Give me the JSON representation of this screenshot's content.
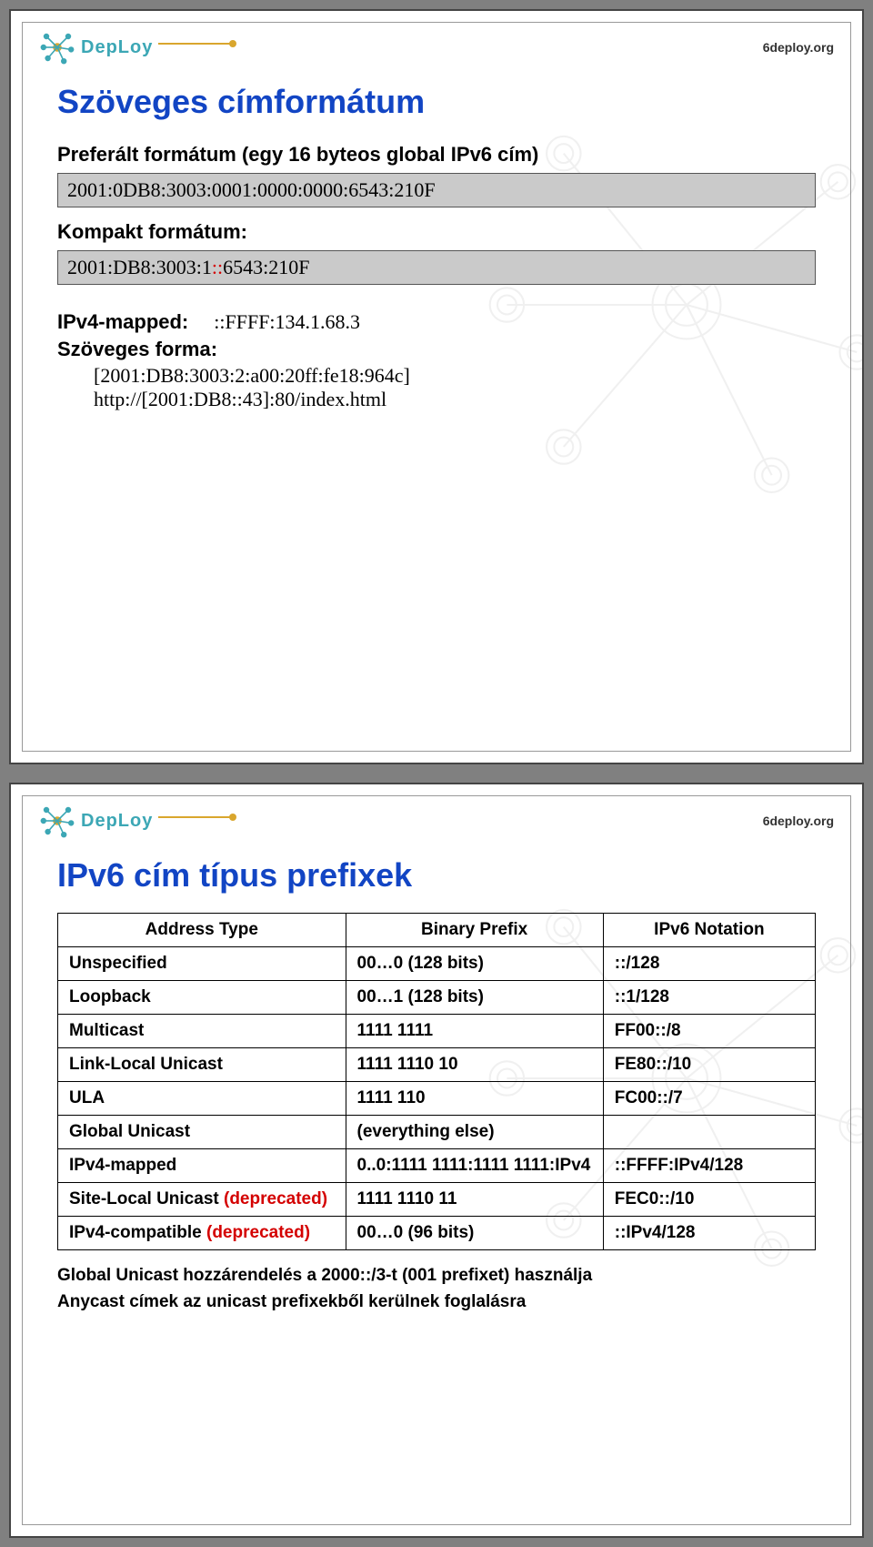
{
  "colors": {
    "title_blue": "#1245c4",
    "logo_cyan": "#3ca7b5",
    "logo_orange": "#d9a62d",
    "red": "#d40000",
    "addr_box_bg": "#cacaca",
    "watermark_gray": "#888888"
  },
  "brand": {
    "logo_text": "DepLoy",
    "right_text": "6deploy.org"
  },
  "slide1": {
    "title": "Szöveges címformátum",
    "pref_label": "Preferált formátum (egy 16 byteos global IPv6 cím)",
    "pref_addr": "2001:0DB8:3003:0001:0000:0000:6543:210F",
    "compact_label": "Kompakt formátum:",
    "compact_addr_pre": "2001:DB8:3003:1",
    "compact_addr_colons": "::",
    "compact_addr_post": "6543:210F",
    "ipv4_mapped_label": "IPv4-mapped:",
    "ipv4_mapped_value": "::FFFF:134.1.68.3",
    "text_form_label": "Szöveges forma:",
    "text_form_1": "[2001:DB8:3003:2:a00:20ff:fe18:964c]",
    "text_form_2": "http://[2001:DB8::43]:80/index.html"
  },
  "slide2": {
    "title": "IPv6 cím típus prefixek",
    "table": {
      "headers": [
        "Address Type",
        "Binary Prefix",
        "IPv6 Notation"
      ],
      "groups": [
        [
          {
            "type": "Unspecified",
            "prefix": "00…0 (128 bits)",
            "notation": "::/128"
          },
          {
            "type": "Loopback",
            "prefix": "00…1 (128 bits)",
            "notation": "::1/128"
          }
        ],
        [
          {
            "type": "Multicast",
            "prefix": "1111 1111",
            "notation": "FF00::/8"
          },
          {
            "type": "Link-Local Unicast",
            "prefix": "1111 1110 10",
            "notation": "FE80::/10"
          },
          {
            "type": "ULA",
            "prefix": "1111 110",
            "notation": "FC00::/7"
          }
        ],
        [
          {
            "type": "Global Unicast",
            "prefix": "(everything else)",
            "notation": ""
          },
          {
            "type": "IPv4-mapped",
            "prefix": "0..0:1111 1111:1111 1111:IPv4",
            "notation": "::FFFF:IPv4/128"
          },
          {
            "type": "Site-Local Unicast ",
            "deprecated": "(deprecated)",
            "prefix": "1111 1110 11",
            "notation": "FEC0::/10"
          },
          {
            "type": "IPv4-compatible ",
            "deprecated": "(deprecated)",
            "prefix": "00…0 (96 bits)",
            "notation": "::IPv4/128"
          }
        ]
      ]
    },
    "footnote1": "Global Unicast hozzárendelés a 2000::/3-t (001 prefixet) használja",
    "footnote2": "Anycast címek az unicast prefixekből kerülnek foglalásra"
  }
}
